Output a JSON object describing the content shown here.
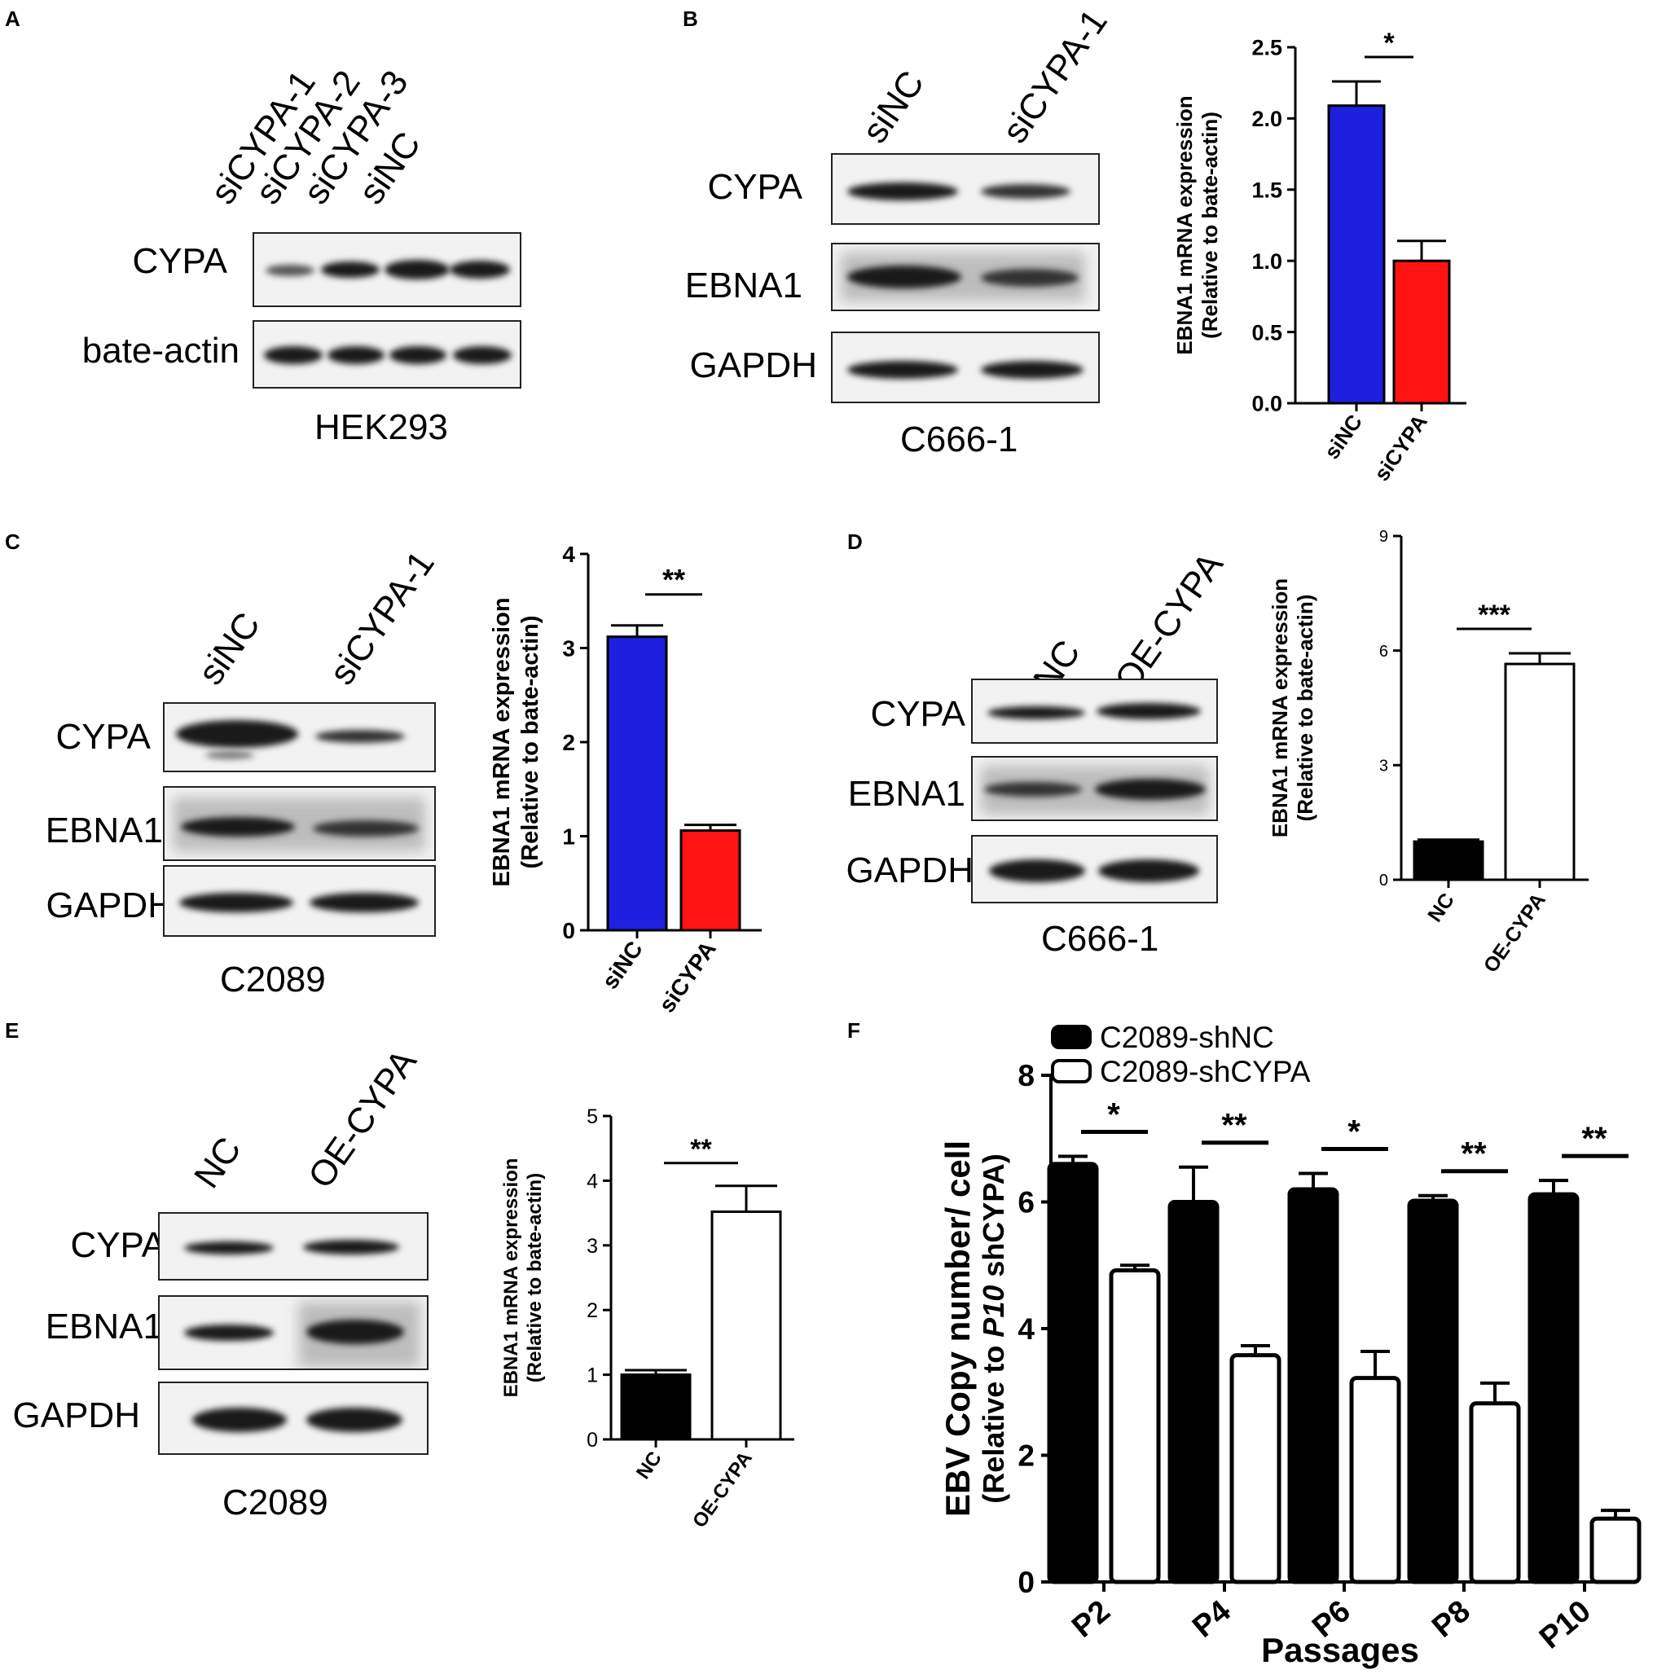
{
  "panels": {
    "A": {
      "letter": "A",
      "lanes": [
        "siCYPA-1",
        "siCYPA-2",
        "siCYPA-3",
        "siNC"
      ],
      "rows": [
        "CYPA",
        "bate-actin"
      ],
      "cell_line": "HEK293"
    },
    "B": {
      "letter": "B",
      "lanes": [
        "siNC",
        "siCYPA-1"
      ],
      "rows": [
        "CYPA",
        "EBNA1",
        "GAPDH"
      ],
      "cell_line": "C666-1"
    },
    "C": {
      "letter": "C",
      "lanes": [
        "siNC",
        "siCYPA-1"
      ],
      "rows": [
        "CYPA",
        "EBNA1",
        "GAPDH"
      ],
      "cell_line": "C2089"
    },
    "D": {
      "letter": "D",
      "lanes": [
        "NC",
        "OE-CYPA"
      ],
      "rows": [
        "CYPA",
        "EBNA1",
        "GAPDH"
      ],
      "cell_line": "C666-1"
    },
    "E": {
      "letter": "E",
      "lanes": [
        "NC",
        "OE-CYPA"
      ],
      "rows": [
        "CYPA",
        "EBNA1",
        "GAPDH"
      ],
      "cell_line": "C2089"
    },
    "F": {
      "letter": "F"
    }
  },
  "chart_data": [
    {
      "id": "B",
      "type": "bar",
      "categories": [
        "siNC",
        "siCYPA"
      ],
      "values": [
        2.09,
        1.0
      ],
      "errors": [
        0.17,
        0.14
      ],
      "colors": [
        "#1f1fe0",
        "#ff1212"
      ],
      "ylabel": [
        "EBNA1 mRNA expression",
        "(Relative to bate-actin)"
      ],
      "ylim": [
        0,
        2.5
      ],
      "yticks": [
        "0.0",
        "0.5",
        "1.0",
        "1.5",
        "2.0",
        "2.5"
      ],
      "significance": "*"
    },
    {
      "id": "C",
      "type": "bar",
      "categories": [
        "siNC",
        "siCYPA"
      ],
      "values": [
        3.12,
        1.06
      ],
      "errors": [
        0.12,
        0.06
      ],
      "colors": [
        "#1f1fe0",
        "#ff1212"
      ],
      "ylabel": [
        "EBNA1 mRNA expression",
        "(Relative to bate-actin)"
      ],
      "ylim": [
        0,
        4
      ],
      "yticks": [
        "0",
        "1",
        "2",
        "3",
        "4"
      ],
      "significance": "**"
    },
    {
      "id": "D",
      "type": "bar",
      "categories": [
        "NC",
        "OE-CYPA"
      ],
      "values": [
        1.0,
        5.65
      ],
      "errors": [
        0.05,
        0.28
      ],
      "colors": [
        "#000000",
        "#ffffff"
      ],
      "ylabel": [
        "EBNA1 mRNA expression",
        "(Relative to bate-actin)"
      ],
      "ylim": [
        0,
        9
      ],
      "yticks": [
        "0",
        "3",
        "6",
        "9"
      ],
      "significance": "***"
    },
    {
      "id": "E",
      "type": "bar",
      "categories": [
        "NC",
        "OE-CYPA"
      ],
      "values": [
        1.0,
        3.52
      ],
      "errors": [
        0.07,
        0.4
      ],
      "colors": [
        "#000000",
        "#ffffff"
      ],
      "ylabel": [
        "EBNA1 mRNA expression",
        "(Relative to bate-actin)"
      ],
      "ylim": [
        0,
        5
      ],
      "yticks": [
        "0",
        "1",
        "2",
        "3",
        "4",
        "5"
      ],
      "significance": "**"
    },
    {
      "id": "F",
      "type": "bar",
      "categories": [
        "P2",
        "P4",
        "P6",
        "P8",
        "P10"
      ],
      "series": [
        {
          "name": "C2089-shNC",
          "values": [
            6.6,
            6.0,
            6.2,
            6.02,
            6.12
          ],
          "errors": [
            0.12,
            0.55,
            0.25,
            0.08,
            0.22
          ],
          "color": "#000000"
        },
        {
          "name": "C2089-shCYPA",
          "values": [
            4.92,
            3.58,
            3.22,
            2.82,
            1.0
          ],
          "errors": [
            0.08,
            0.15,
            0.42,
            0.32,
            0.13
          ],
          "color": "#ffffff"
        }
      ],
      "xlabel": "Passages",
      "ylabel_main": "EBV Copy number/ cell",
      "ylabel_sub_prefix": "(Relative to ",
      "ylabel_sub_italic": "P10",
      "ylabel_sub_suffix": " shCYPA)",
      "ylim": [
        0,
        8
      ],
      "yticks": [
        "0",
        "2",
        "4",
        "6",
        "8"
      ],
      "significance": [
        "*",
        "**",
        "*",
        "**",
        "**"
      ],
      "legend_position": "top"
    }
  ]
}
